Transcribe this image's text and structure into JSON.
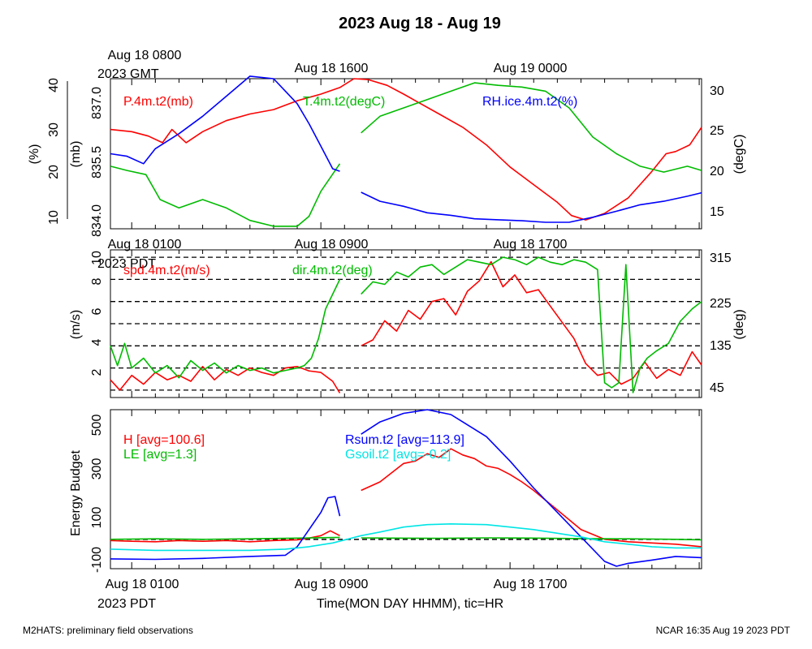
{
  "page": {
    "title": "2023 Aug 18 - Aug 19",
    "footer_left": "M2HATS: preliminary field observations",
    "footer_right": "NCAR 16:35 Aug 19 2023 PDT",
    "xlabel": "Time(MON DAY HHMM), tic=HR"
  },
  "time_axis": {
    "gmt_ticks": [
      "Aug 18 0800",
      "Aug 18 1600",
      "Aug 19 0000"
    ],
    "gmt_year": "2023 GMT",
    "pdt_ticks": [
      "Aug 18 0100",
      "Aug 18 0900",
      "Aug 18 1700"
    ],
    "pdt_year": "2023 PDT"
  },
  "chart_data": [
    {
      "type": "line",
      "panel": "top",
      "x_unit": "hours since Aug 18 0000 PDT",
      "xlim": [
        0.1,
        25.1
      ],
      "axes": {
        "left_outer": {
          "label": "(%)",
          "ticks": [
            "10",
            "20",
            "30",
            "40"
          ],
          "lim": [
            10,
            40
          ]
        },
        "left_inner": {
          "label": "(mb)",
          "ticks": [
            "834.0",
            "835.5",
            "837.0"
          ],
          "lim": [
            834.0,
            837.4
          ]
        },
        "right": {
          "label": "(degC)",
          "ticks": [
            "15",
            "20",
            "25",
            "30"
          ],
          "lim": [
            13,
            31
          ]
        }
      },
      "series": [
        {
          "name": "P.4m.t2(mb)",
          "color": "#ff0000",
          "axis": "left_inner",
          "x": [
            0.1,
            1,
            1.7,
            2.3,
            2.7,
            3.3,
            4,
            5,
            6,
            7,
            8,
            9,
            9.8,
            10.4,
            11.0,
            11.8,
            12.5,
            13,
            14,
            15,
            16,
            17,
            18,
            19,
            19.6,
            20.2,
            21,
            22,
            23,
            23.6,
            24,
            24.6,
            25.1
          ],
          "y": [
            836.25,
            836.2,
            836.1,
            835.95,
            836.25,
            835.95,
            836.2,
            836.45,
            836.6,
            836.7,
            836.9,
            837.05,
            837.2,
            837.4,
            837.38,
            837.25,
            837.05,
            836.9,
            836.6,
            836.3,
            835.9,
            835.4,
            835.0,
            834.6,
            834.3,
            834.2,
            834.35,
            834.7,
            835.3,
            835.7,
            835.75,
            835.9,
            836.3
          ]
        },
        {
          "name": "T.4m.t2(degC)",
          "color": "#00bb00",
          "axis": "right",
          "x": [
            0.1,
            0.8,
            1.6,
            2.2,
            3,
            4,
            5,
            6,
            7,
            8,
            8.5,
            9,
            9.8,
            null,
            10.7,
            11.5,
            12.5,
            13.5,
            14.5,
            15.5,
            16.5,
            17.5,
            18.5,
            19.5,
            20.5,
            21.5,
            22.5,
            23.5,
            24.5,
            25.1
          ],
          "y": [
            20.5,
            20,
            19.5,
            16.5,
            15.5,
            16.5,
            15.5,
            14,
            13.3,
            13.3,
            14.5,
            17.5,
            20.8,
            null,
            24.5,
            26.5,
            27.5,
            28.5,
            29.5,
            30.5,
            30.2,
            30,
            29.5,
            27.5,
            24,
            22,
            20.5,
            19.8,
            20.5,
            20
          ]
        },
        {
          "name": "RH.ice.4m.t2(%)",
          "color": "#0000ff",
          "axis": "left_outer",
          "x": [
            0.1,
            0.8,
            1.5,
            2,
            3,
            4,
            5,
            6,
            7,
            7.5,
            8,
            8.5,
            9,
            9.5,
            9.8,
            null,
            10.7,
            11.5,
            12.5,
            13.5,
            14.5,
            15.5,
            16.5,
            17.5,
            18.5,
            19.5,
            20.5,
            21.5,
            22.5,
            23.5,
            24.5,
            25.1
          ],
          "y": [
            25,
            24.5,
            23,
            26,
            29,
            32.5,
            36.5,
            40.5,
            40,
            37.5,
            35,
            31,
            26.5,
            22,
            21.5,
            null,
            17.3,
            15.5,
            14.5,
            13.2,
            12.7,
            12,
            11.8,
            11.6,
            11.3,
            11.3,
            12.3,
            13.5,
            14.8,
            15.5,
            16.5,
            17.2
          ]
        }
      ]
    },
    {
      "type": "line",
      "panel": "middle",
      "x_unit": "hours since Aug 18 0000 PDT",
      "xlim": [
        0.1,
        25.1
      ],
      "axes": {
        "left": {
          "label": "(m/s)",
          "ticks": [
            "2",
            "4",
            "6",
            "8",
            "10"
          ],
          "lim": [
            0.3,
            10.3
          ]
        },
        "right": {
          "label": "(deg)",
          "ticks": [
            "45",
            "135",
            "225",
            "315"
          ],
          "lim": [
            30,
            330
          ]
        }
      },
      "dashed_lines_deg": [
        45,
        90,
        135,
        180,
        225,
        270,
        315
      ],
      "series": [
        {
          "name": "spd.4m.t2(m/s)",
          "color": "#ff0000",
          "axis": "left",
          "x": [
            0.1,
            0.5,
            1,
            1.5,
            2,
            2.5,
            3,
            3.5,
            4,
            4.5,
            5,
            5.5,
            6,
            6.5,
            7,
            7.5,
            8,
            8.5,
            9,
            9.5,
            9.8,
            null,
            10.7,
            11.2,
            11.7,
            12.2,
            12.7,
            13.2,
            13.7,
            14.2,
            14.7,
            15.2,
            15.7,
            16.2,
            16.7,
            17.2,
            17.7,
            18.2,
            18.7,
            19.2,
            19.7,
            20.2,
            20.7,
            21.2,
            21.7,
            22.2,
            22.7,
            23.2,
            23.7,
            24.2,
            24.7,
            25.1
          ],
          "y": [
            1.5,
            0.8,
            1.8,
            1.2,
            2,
            1.5,
            1.8,
            1.4,
            2.4,
            1.5,
            2.2,
            1.8,
            2.3,
            2,
            1.8,
            2.3,
            2.4,
            2.1,
            2,
            1.4,
            0.6,
            null,
            3.8,
            4.2,
            5.5,
            4.8,
            6.2,
            5.6,
            6.8,
            7,
            5.9,
            7.5,
            8.2,
            9.5,
            7.8,
            8.6,
            7.4,
            7.6,
            6.5,
            5.4,
            4.3,
            2.6,
            1.8,
            2,
            1.2,
            1.6,
            2.7,
            1.6,
            2.2,
            1.8,
            3.4,
            2.5
          ]
        },
        {
          "name": "dir.4m.t2(deg)",
          "color": "#00bb00",
          "axis": "right",
          "x": [
            0.1,
            0.4,
            0.7,
            1,
            1.5,
            2,
            2.5,
            3,
            3.5,
            4,
            4.5,
            5,
            5.5,
            6,
            6.5,
            7,
            7.5,
            8,
            8.3,
            8.6,
            8.9,
            9.2,
            9.5,
            9.8,
            null,
            10.7,
            11.2,
            11.7,
            12.2,
            12.7,
            13.2,
            13.7,
            14.2,
            14.7,
            15.2,
            15.7,
            16.2,
            16.7,
            17.2,
            17.7,
            18.2,
            18.7,
            19.2,
            19.7,
            20.2,
            20.7,
            21.0,
            21.3,
            21.6,
            21.9,
            22.2,
            22.5,
            22.8,
            23.2,
            23.7,
            24.2,
            24.7,
            25.1
          ],
          "y": [
            135,
            95,
            140,
            90,
            110,
            80,
            95,
            70,
            105,
            85,
            100,
            80,
            95,
            85,
            90,
            80,
            85,
            90,
            95,
            110,
            150,
            210,
            240,
            270,
            null,
            240,
            265,
            260,
            285,
            275,
            295,
            300,
            280,
            295,
            310,
            305,
            300,
            315,
            310,
            300,
            315,
            305,
            300,
            310,
            305,
            290,
            60,
            50,
            60,
            300,
            40,
            90,
            110,
            125,
            140,
            185,
            210,
            225
          ]
        }
      ]
    },
    {
      "type": "line",
      "panel": "bottom",
      "x_unit": "hours since Aug 18 0000 PDT",
      "xlim": [
        0.1,
        25.1
      ],
      "axes": {
        "left": {
          "label": "Energy Budget",
          "ticks": [
            "-100",
            "100",
            "300",
            "500"
          ],
          "lim": [
            -120,
            530
          ]
        }
      },
      "dashed_lines": [
        0
      ],
      "legend_stats": {
        "H": "H [avg=100.6]",
        "LE": "LE [avg=1.3]",
        "Rsum": "Rsum.t2 [avg=113.9]",
        "Gsoil": "Gsoil.t2 [avg=-0.2]"
      },
      "series": [
        {
          "name": "H",
          "color": "#ff0000",
          "x": [
            0.1,
            1,
            2,
            3,
            4,
            5,
            6,
            7,
            8,
            8.5,
            9,
            9.4,
            9.8,
            null,
            10.7,
            11.5,
            12.5,
            13,
            13.5,
            14,
            14.5,
            15,
            15.5,
            16,
            16.5,
            17,
            17.5,
            18,
            19,
            20,
            21,
            22,
            23,
            24,
            25.1
          ],
          "y": [
            -5,
            -8,
            -10,
            -5,
            -8,
            -5,
            -10,
            -5,
            -2,
            5,
            15,
            35,
            15,
            null,
            200,
            235,
            310,
            320,
            350,
            335,
            370,
            345,
            330,
            300,
            290,
            265,
            235,
            200,
            120,
            40,
            0,
            -10,
            -15,
            -20,
            -30
          ]
        },
        {
          "name": "LE",
          "color": "#00bb00",
          "x": [
            0.1,
            2,
            4,
            6,
            8,
            9.8,
            null,
            10.7,
            12,
            14,
            16,
            18,
            20,
            22,
            24,
            25.1
          ],
          "y": [
            0,
            2,
            0,
            2,
            5,
            8,
            null,
            6,
            5,
            4,
            6,
            5,
            3,
            2,
            0,
            -2
          ]
        },
        {
          "name": "Rsum.t2",
          "color": "#0000ff",
          "x": [
            0.1,
            2,
            4,
            6,
            7.5,
            8,
            8.5,
            9,
            9.3,
            9.6,
            9.8,
            null,
            10.7,
            11.5,
            12.5,
            13.5,
            14.5,
            15,
            16,
            17,
            18,
            19,
            20,
            21,
            21.5,
            22,
            23,
            24,
            25.1
          ],
          "y": [
            -80,
            -82,
            -78,
            -70,
            -65,
            -30,
            40,
            110,
            170,
            175,
            95,
            null,
            430,
            480,
            515,
            530,
            510,
            480,
            420,
            320,
            210,
            110,
            10,
            -90,
            -110,
            -98,
            -85,
            -70,
            -75
          ]
        },
        {
          "name": "Gsoil.t2",
          "color": "#00e5e5",
          "x": [
            0.1,
            2,
            4,
            6,
            7.5,
            8.5,
            9.5,
            10.7,
            11.5,
            12.5,
            13.5,
            14.5,
            16,
            17,
            18,
            19,
            20,
            21,
            22,
            23,
            24,
            25.1
          ],
          "y": [
            -40,
            -45,
            -45,
            -45,
            -40,
            -30,
            -15,
            15,
            30,
            50,
            60,
            63,
            60,
            50,
            40,
            25,
            10,
            -10,
            -20,
            -30,
            -35,
            -35
          ]
        }
      ]
    }
  ]
}
